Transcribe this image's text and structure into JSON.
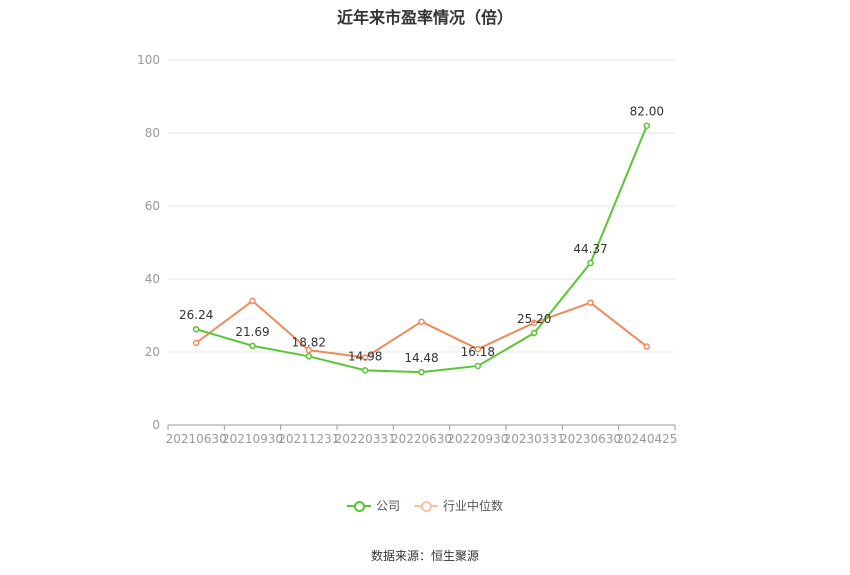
{
  "chart_data": {
    "type": "line",
    "title": "近年来市盈率情况（倍）",
    "categories": [
      "20210630",
      "20210930",
      "20211231",
      "20220331",
      "20220630",
      "20220930",
      "20230331",
      "20230630",
      "20240425"
    ],
    "ylim": [
      0,
      100
    ],
    "yticks": [
      0,
      20,
      40,
      60,
      80,
      100
    ],
    "grid": true,
    "legend_position": "bottom",
    "series": [
      {
        "name": "公司",
        "color": "#5ac433",
        "values": [
          26.24,
          21.69,
          18.82,
          14.98,
          14.48,
          16.18,
          25.2,
          44.37,
          82.0
        ],
        "labels": [
          "26.24",
          "21.69",
          "18.82",
          "14.98",
          "14.48",
          "16.18",
          "25.20",
          "44.37",
          "82.00"
        ]
      },
      {
        "name": "行业中位数",
        "color": "#f08a5d",
        "values": [
          22.5,
          34.0,
          20.5,
          18.5,
          28.3,
          20.8,
          28.0,
          33.5,
          21.5
        ]
      }
    ]
  },
  "source": "数据来源：恒生聚源"
}
